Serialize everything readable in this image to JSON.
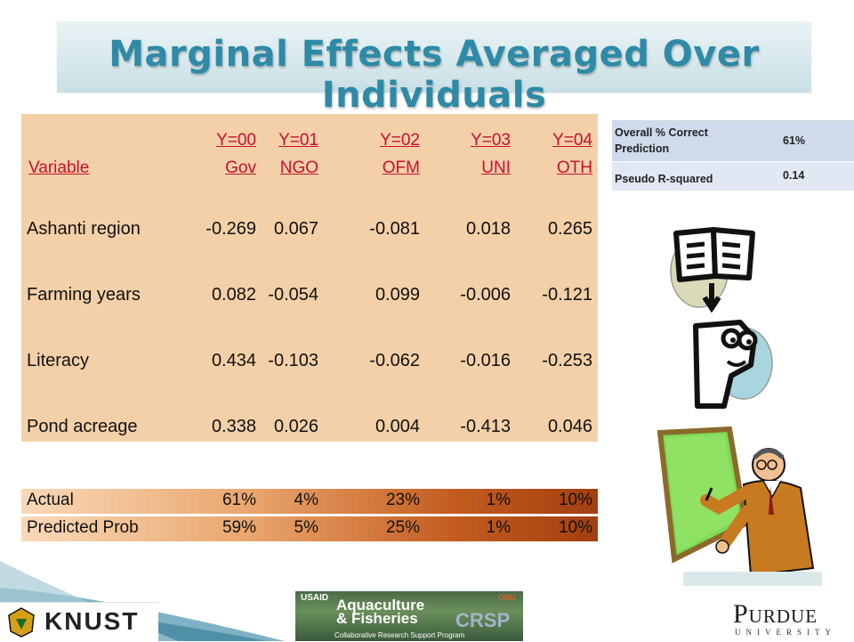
{
  "title": "Marginal Effects Averaged Over Individuals",
  "table": {
    "headers": [
      {
        "label": "Variable"
      },
      {
        "top": "Y=00",
        "bottom": "Gov"
      },
      {
        "top": "Y=01",
        "bottom": "NGO"
      },
      {
        "top": "Y=02",
        "bottom": "OFM"
      },
      {
        "top": "Y=03",
        "bottom": "UNI"
      },
      {
        "top": "Y=04",
        "bottom": "OTH"
      }
    ],
    "rows": [
      {
        "label": "Ashanti region",
        "values": [
          "-0.269",
          "0.067",
          "-0.081",
          "0.018",
          "0.265"
        ]
      },
      {
        "label": "Farming years",
        "values": [
          "0.082",
          "-0.054",
          "0.099",
          "-0.006",
          "-0.121"
        ]
      },
      {
        "label": "Literacy",
        "values": [
          "0.434",
          "-0.103",
          "-0.062",
          "-0.016",
          "-0.253"
        ]
      },
      {
        "label": "Pond acreage",
        "values": [
          "0.338",
          "0.026",
          "0.004",
          "-0.413",
          "0.046"
        ]
      }
    ],
    "summary": [
      {
        "label": "Actual",
        "values": [
          "61%",
          "4%",
          "23%",
          "1%",
          "10%"
        ]
      },
      {
        "label": "Predicted Prob",
        "values": [
          "59%",
          "5%",
          "25%",
          "1%",
          "10%"
        ]
      }
    ]
  },
  "stats": [
    {
      "label": "Overall % Correct Prediction",
      "value": "61%"
    },
    {
      "label": "Pseudo R-squared",
      "value": "0.14"
    }
  ],
  "logos": {
    "knust": "KNUST",
    "aqua_usaid": "USAID",
    "aqua_main_1": "Aquaculture",
    "aqua_main_2": "& Fisheries",
    "aqua_sub": "Collaborative Research Support Program",
    "aqua_crsp": "CRSP",
    "aqua_osu": "OSU",
    "purdue": "Purdue",
    "purdue_sub": "UNIVERSITY"
  },
  "colors": {
    "title": "#2e8aa6",
    "header_text": "#c8102e",
    "table_bg": "#f3d0a8"
  }
}
